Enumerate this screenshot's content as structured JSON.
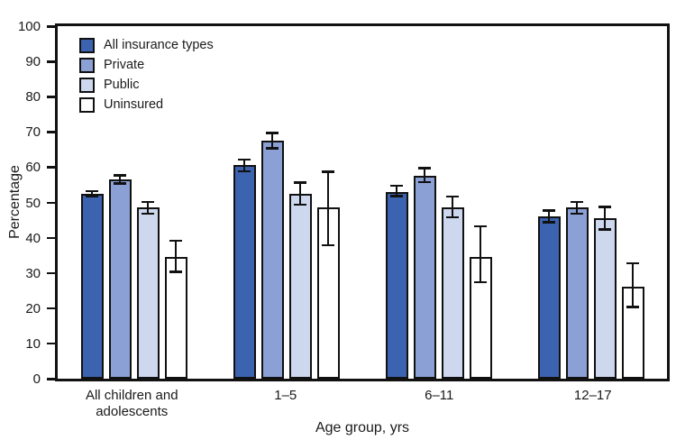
{
  "figure": {
    "background": "#ffffff",
    "text_color": "#1a1a1a",
    "axis_color": "#111111"
  },
  "chart_data": {
    "type": "bar",
    "title": "",
    "xlabel": "Age group, yrs",
    "ylabel": "Percentage",
    "ylim": [
      0,
      100
    ],
    "yticks": [
      0,
      10,
      20,
      30,
      40,
      50,
      60,
      70,
      80,
      90,
      100
    ],
    "grid": false,
    "legend_position": "top-left inside plot",
    "error_bars": true,
    "categories": [
      "All children and\nadolescents",
      "1–5",
      "6–11",
      "12–17"
    ],
    "series": [
      {
        "name": "All insurance types",
        "color": "#3C63AF",
        "values": [
          52.5,
          60.5,
          53,
          46
        ],
        "ci_low": [
          51.5,
          58.5,
          51.5,
          44
        ],
        "ci_high": [
          53.5,
          62.5,
          55,
          48
        ]
      },
      {
        "name": "Private",
        "color": "#8BA0D4",
        "values": [
          56.5,
          67.5,
          57.5,
          48.5
        ],
        "ci_low": [
          55,
          65,
          55.5,
          46.5
        ],
        "ci_high": [
          58,
          70,
          60,
          50.5
        ]
      },
      {
        "name": "Public",
        "color": "#CDD7EE",
        "values": [
          48.5,
          52.5,
          48.5,
          45.5
        ],
        "ci_low": [
          46.5,
          49,
          45.5,
          42
        ],
        "ci_high": [
          50.5,
          56,
          52,
          49
        ]
      },
      {
        "name": "Uninsured",
        "color": "#FFFFFF",
        "values": [
          34.5,
          48.5,
          34.5,
          26
        ],
        "ci_low": [
          30,
          37.5,
          27,
          20
        ],
        "ci_high": [
          39.5,
          59,
          43.5,
          33
        ]
      }
    ]
  }
}
